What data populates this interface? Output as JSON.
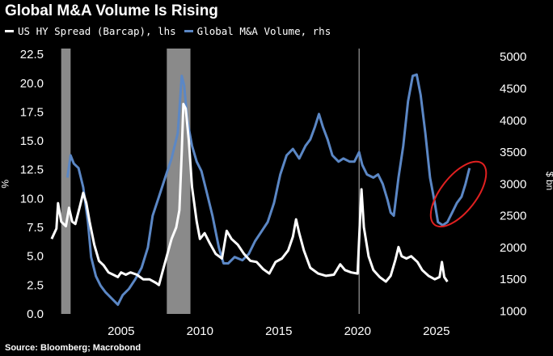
{
  "chart_data": {
    "type": "line",
    "title": "Global M&A Volume Is Rising",
    "source": "Source: Bloomberg; Macrobond",
    "xlim": [
      2000.5,
      2028.5
    ],
    "x_ticks": [
      2005,
      2010,
      2015,
      2020,
      2025
    ],
    "left_axis": {
      "label": "%",
      "ylim": [
        0,
        23
      ],
      "ticks": [
        "0.0",
        "2.5",
        "5.0",
        "7.5",
        "10.0",
        "12.5",
        "15.0",
        "17.5",
        "20.0",
        "22.5"
      ]
    },
    "right_axis": {
      "label": "$ bn",
      "ylim": [
        955,
        5130
      ],
      "ticks": [
        "1000",
        "1500",
        "2000",
        "2500",
        "3000",
        "3500",
        "4000",
        "4500",
        "5000"
      ]
    },
    "recession_bands": [
      [
        2001.2,
        2001.8
      ],
      [
        2007.9,
        2009.4
      ]
    ],
    "vertical_line_x": 2020.1,
    "annotation": {
      "type": "ellipse",
      "x_center": 2026.4,
      "y_center_rhs": 2840
    },
    "series": [
      {
        "name": "US HY Spread (Barcap), lhs",
        "axis": "left",
        "color": "#ffffff",
        "points": [
          [
            2000.6,
            6.5
          ],
          [
            2000.9,
            7.4
          ],
          [
            2001.0,
            9.6
          ],
          [
            2001.2,
            8.0
          ],
          [
            2001.5,
            7.6
          ],
          [
            2001.7,
            9.2
          ],
          [
            2001.9,
            8.0
          ],
          [
            2002.1,
            7.8
          ],
          [
            2002.4,
            9.4
          ],
          [
            2002.6,
            10.5
          ],
          [
            2002.8,
            9.6
          ],
          [
            2003.0,
            8.0
          ],
          [
            2003.3,
            6.0
          ],
          [
            2003.6,
            4.6
          ],
          [
            2003.9,
            4.2
          ],
          [
            2004.2,
            3.6
          ],
          [
            2004.5,
            3.4
          ],
          [
            2004.8,
            3.2
          ],
          [
            2005.0,
            3.6
          ],
          [
            2005.3,
            3.4
          ],
          [
            2005.6,
            3.6
          ],
          [
            2006.0,
            3.4
          ],
          [
            2006.4,
            3.0
          ],
          [
            2006.8,
            3.0
          ],
          [
            2007.2,
            2.7
          ],
          [
            2007.4,
            2.5
          ],
          [
            2007.6,
            3.5
          ],
          [
            2007.9,
            5.0
          ],
          [
            2008.2,
            6.5
          ],
          [
            2008.5,
            7.5
          ],
          [
            2008.7,
            9.0
          ],
          [
            2008.85,
            14.0
          ],
          [
            2008.95,
            18.2
          ],
          [
            2009.1,
            17.8
          ],
          [
            2009.3,
            15.0
          ],
          [
            2009.5,
            11.0
          ],
          [
            2009.8,
            8.0
          ],
          [
            2010.0,
            6.5
          ],
          [
            2010.3,
            7.0
          ],
          [
            2010.6,
            6.2
          ],
          [
            2011.0,
            5.2
          ],
          [
            2011.4,
            4.8
          ],
          [
            2011.7,
            7.2
          ],
          [
            2012.0,
            6.5
          ],
          [
            2012.4,
            6.0
          ],
          [
            2012.8,
            5.2
          ],
          [
            2013.2,
            4.6
          ],
          [
            2013.6,
            4.5
          ],
          [
            2014.0,
            3.9
          ],
          [
            2014.4,
            3.5
          ],
          [
            2014.8,
            4.5
          ],
          [
            2015.2,
            4.8
          ],
          [
            2015.6,
            5.5
          ],
          [
            2015.9,
            6.7
          ],
          [
            2016.1,
            8.2
          ],
          [
            2016.3,
            7.0
          ],
          [
            2016.6,
            5.5
          ],
          [
            2017.0,
            4.0
          ],
          [
            2017.5,
            3.5
          ],
          [
            2018.0,
            3.3
          ],
          [
            2018.5,
            3.4
          ],
          [
            2018.9,
            4.3
          ],
          [
            2019.2,
            3.8
          ],
          [
            2019.6,
            3.6
          ],
          [
            2020.0,
            3.5
          ],
          [
            2020.15,
            8.0
          ],
          [
            2020.25,
            10.8
          ],
          [
            2020.4,
            7.5
          ],
          [
            2020.7,
            5.0
          ],
          [
            2021.0,
            3.8
          ],
          [
            2021.4,
            3.2
          ],
          [
            2021.8,
            2.8
          ],
          [
            2022.1,
            3.3
          ],
          [
            2022.4,
            4.7
          ],
          [
            2022.6,
            5.8
          ],
          [
            2022.8,
            5.0
          ],
          [
            2023.1,
            4.8
          ],
          [
            2023.4,
            5.0
          ],
          [
            2023.8,
            4.5
          ],
          [
            2024.1,
            3.8
          ],
          [
            2024.5,
            3.3
          ],
          [
            2024.9,
            3.0
          ],
          [
            2025.2,
            3.2
          ],
          [
            2025.35,
            4.5
          ],
          [
            2025.5,
            3.2
          ],
          [
            2025.7,
            2.8
          ]
        ]
      },
      {
        "name": "Global M&A Volume, rhs",
        "axis": "right",
        "color": "#5b87c5",
        "points": [
          [
            2001.6,
            3100
          ],
          [
            2001.8,
            3450
          ],
          [
            2002.0,
            3320
          ],
          [
            2002.3,
            3250
          ],
          [
            2002.6,
            2950
          ],
          [
            2002.9,
            2400
          ],
          [
            2003.1,
            1850
          ],
          [
            2003.4,
            1550
          ],
          [
            2003.7,
            1400
          ],
          [
            2004.0,
            1300
          ],
          [
            2004.4,
            1200
          ],
          [
            2004.8,
            1100
          ],
          [
            2005.1,
            1250
          ],
          [
            2005.5,
            1350
          ],
          [
            2005.9,
            1500
          ],
          [
            2006.3,
            1680
          ],
          [
            2006.7,
            2000
          ],
          [
            2007.0,
            2500
          ],
          [
            2007.4,
            2800
          ],
          [
            2007.8,
            3100
          ],
          [
            2008.2,
            3400
          ],
          [
            2008.6,
            3800
          ],
          [
            2008.85,
            4700
          ],
          [
            2009.0,
            4550
          ],
          [
            2009.2,
            4000
          ],
          [
            2009.5,
            3600
          ],
          [
            2009.8,
            3350
          ],
          [
            2010.1,
            3200
          ],
          [
            2010.4,
            2900
          ],
          [
            2010.8,
            2500
          ],
          [
            2011.2,
            2000
          ],
          [
            2011.5,
            1750
          ],
          [
            2011.8,
            1750
          ],
          [
            2012.2,
            1850
          ],
          [
            2012.7,
            1800
          ],
          [
            2013.1,
            1900
          ],
          [
            2013.5,
            2100
          ],
          [
            2013.9,
            2250
          ],
          [
            2014.3,
            2400
          ],
          [
            2014.7,
            2700
          ],
          [
            2015.1,
            3150
          ],
          [
            2015.5,
            3450
          ],
          [
            2015.9,
            3550
          ],
          [
            2016.3,
            3400
          ],
          [
            2016.7,
            3600
          ],
          [
            2017.0,
            3700
          ],
          [
            2017.3,
            3900
          ],
          [
            2017.55,
            4100
          ],
          [
            2017.8,
            3900
          ],
          [
            2018.1,
            3700
          ],
          [
            2018.4,
            3450
          ],
          [
            2018.8,
            3350
          ],
          [
            2019.1,
            3400
          ],
          [
            2019.5,
            3350
          ],
          [
            2019.8,
            3350
          ],
          [
            2020.1,
            3500
          ],
          [
            2020.3,
            3300
          ],
          [
            2020.6,
            3150
          ],
          [
            2021.0,
            3100
          ],
          [
            2021.3,
            3150
          ],
          [
            2021.6,
            3000
          ],
          [
            2021.9,
            2750
          ],
          [
            2022.1,
            2550
          ],
          [
            2022.3,
            2500
          ],
          [
            2022.6,
            3100
          ],
          [
            2022.9,
            3600
          ],
          [
            2023.2,
            4300
          ],
          [
            2023.5,
            4700
          ],
          [
            2023.75,
            4720
          ],
          [
            2024.0,
            4400
          ],
          [
            2024.3,
            3800
          ],
          [
            2024.6,
            3100
          ],
          [
            2024.9,
            2700
          ],
          [
            2025.1,
            2400
          ],
          [
            2025.4,
            2350
          ],
          [
            2025.7,
            2400
          ],
          [
            2026.0,
            2550
          ],
          [
            2026.3,
            2700
          ],
          [
            2026.6,
            2800
          ],
          [
            2026.85,
            3000
          ],
          [
            2027.1,
            3250
          ]
        ]
      }
    ]
  }
}
